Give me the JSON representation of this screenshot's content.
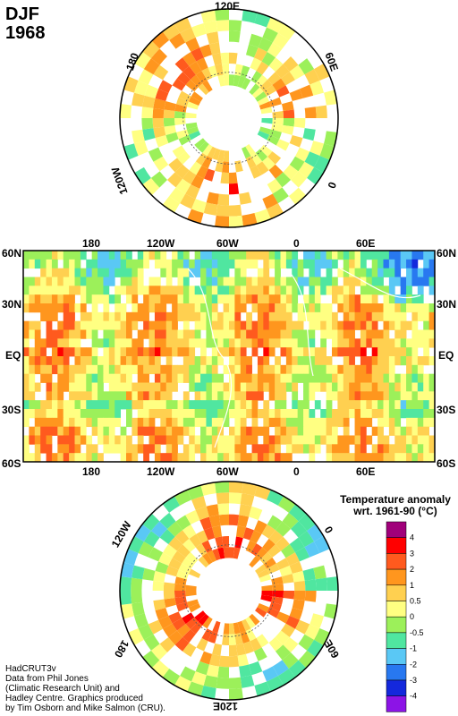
{
  "header": {
    "season": "DJF",
    "year": "1968"
  },
  "north_polar_map": {
    "longitude_labels": [
      "120E",
      "60E",
      "0",
      "120W",
      "180"
    ]
  },
  "equatorial_map": {
    "top_lon_labels": [
      "180",
      "120W",
      "60W",
      "0",
      "60E"
    ],
    "bottom_lon_labels": [
      "180",
      "120W",
      "60W",
      "0",
      "60E"
    ],
    "lat_labels": [
      "60N",
      "30N",
      "EQ",
      "30S",
      "60S"
    ]
  },
  "south_polar_map": {
    "longitude_labels": [
      "120W",
      "0",
      "60E",
      "120E",
      "180"
    ]
  },
  "legend": {
    "title_line1": "Temperature anomaly",
    "title_line2": "wrt. 1961-90  (°C)",
    "bins": [
      {
        "label": "4",
        "color": "#a0007a"
      },
      {
        "label": "3",
        "color": "#ff0000"
      },
      {
        "label": "2",
        "color": "#ff5a1e"
      },
      {
        "label": "1",
        "color": "#ff961e"
      },
      {
        "label": "0.5",
        "color": "#ffd050"
      },
      {
        "label": "0",
        "color": "#ffff82"
      },
      {
        "label": "-0.5",
        "color": "#9cf05a"
      },
      {
        "label": "-1",
        "color": "#50e6a0"
      },
      {
        "label": "-2",
        "color": "#5ac8f5"
      },
      {
        "label": "-3",
        "color": "#2878f0"
      },
      {
        "label": "-4",
        "color": "#1428dc"
      },
      {
        "label": "",
        "color": "#8c14e6"
      }
    ]
  },
  "credit": {
    "line1": "HadCRUT3v",
    "line2": "Data from Phil Jones",
    "line3": "(Climatic Research Unit) and",
    "line4": "Hadley Centre.  Graphics produced",
    "line5": "by Tim Osborn and Mike Salmon (CRU)."
  }
}
